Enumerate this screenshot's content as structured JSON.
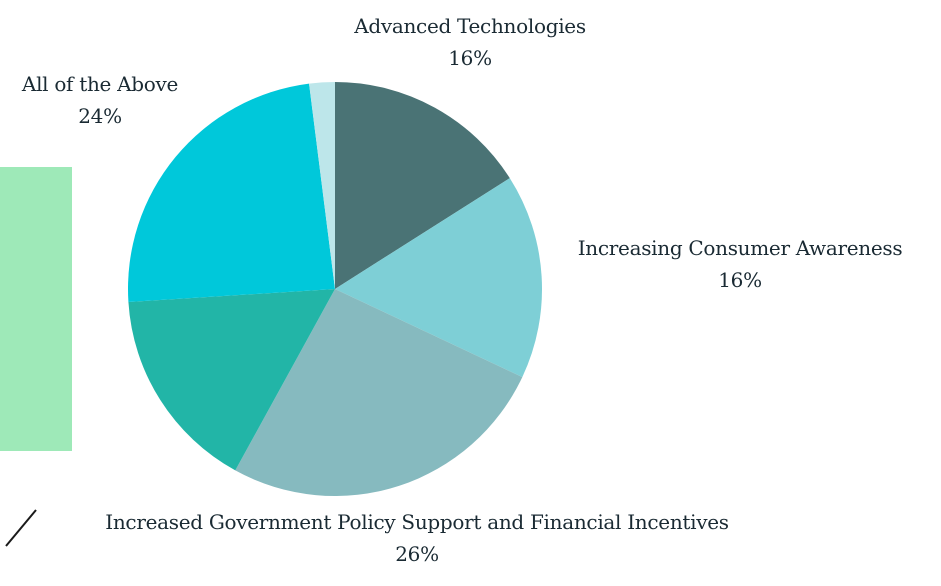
{
  "chart_data": {
    "type": "pie",
    "title": "",
    "slices": [
      {
        "label": "Advanced Technologies",
        "value": 16,
        "value_label": "16%",
        "color": "#4a7375"
      },
      {
        "label": "Increasing Consumer Awareness",
        "value": 16,
        "value_label": "16%",
        "color": "#7ecfd6"
      },
      {
        "label": "Increased Government Policy Support and Financial Incentives",
        "value": 26,
        "value_label": "26%",
        "color": "#86babf"
      },
      {
        "label": "",
        "value": 16,
        "value_label": "",
        "color": "#22b5a7"
      },
      {
        "label": "All of the Above",
        "value": 24,
        "value_label": "24%",
        "color": "#00c8da"
      },
      {
        "label": "",
        "value": 2,
        "value_label": "",
        "color": "#bde6ea"
      }
    ]
  },
  "decor": {
    "side_panel_color": "#9ee9b8"
  }
}
